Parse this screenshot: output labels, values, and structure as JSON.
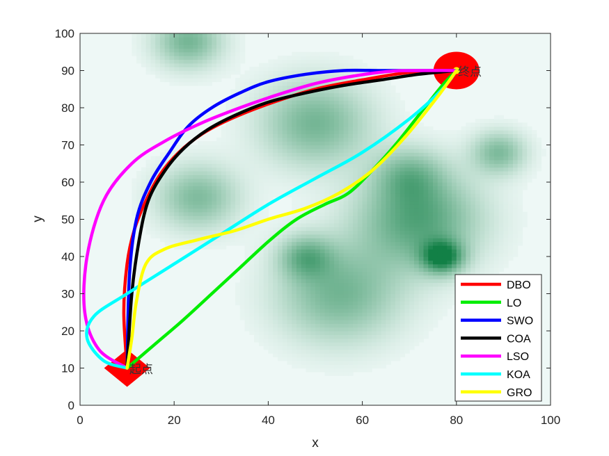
{
  "chart_data": {
    "type": "line",
    "title": "",
    "xlabel": "x",
    "ylabel": "y",
    "xlim": [
      0,
      100
    ],
    "ylim": [
      0,
      100
    ],
    "xticks": [
      "0",
      "20",
      "40",
      "60",
      "80",
      "100"
    ],
    "yticks": [
      "0",
      "10",
      "20",
      "30",
      "40",
      "50",
      "60",
      "70",
      "80",
      "90",
      "100"
    ],
    "legend_position": "bottom-right",
    "start": {
      "label": "起点",
      "x": 10,
      "y": 10,
      "color": "#ff0000"
    },
    "goal": {
      "label": "终点",
      "x": 80,
      "y": 90,
      "color": "#ff0000"
    },
    "threats": [
      {
        "x": 23,
        "y": 98,
        "strength": 0.55,
        "spread": 5
      },
      {
        "x": 50,
        "y": 76,
        "strength": 0.55,
        "spread": 8
      },
      {
        "x": 25,
        "y": 56,
        "strength": 0.5,
        "spread": 6
      },
      {
        "x": 72,
        "y": 50,
        "strength": 0.7,
        "spread": 9
      },
      {
        "x": 77,
        "y": 40,
        "strength": 0.9,
        "spread": 3
      },
      {
        "x": 55,
        "y": 30,
        "strength": 0.55,
        "spread": 9
      },
      {
        "x": 48,
        "y": 40,
        "strength": 0.5,
        "spread": 4
      },
      {
        "x": 89,
        "y": 68,
        "strength": 0.5,
        "spread": 4
      },
      {
        "x": 70,
        "y": 62,
        "strength": 0.4,
        "spread": 5
      }
    ],
    "series": [
      {
        "name": "DBO",
        "color": "#ff0000",
        "x": [
          10,
          9.3,
          10,
          11.5,
          14,
          17,
          21,
          26,
          32,
          40,
          50,
          60,
          70,
          80
        ],
        "y": [
          10,
          25,
          38,
          47,
          55,
          62,
          68,
          73,
          77,
          81,
          85,
          87.5,
          89.5,
          90
        ]
      },
      {
        "name": "LO",
        "color": "#00ee00",
        "x": [
          10,
          16,
          22,
          28,
          34,
          40,
          46,
          52,
          57,
          62,
          67,
          72,
          77,
          80
        ],
        "y": [
          10,
          16.5,
          23,
          30,
          37,
          44,
          50,
          54,
          57,
          63,
          70,
          78,
          86,
          90
        ]
      },
      {
        "name": "SWO",
        "color": "#0000ff",
        "x": [
          10,
          10.5,
          12,
          15,
          19,
          23,
          28,
          34,
          40,
          48,
          56,
          64,
          72,
          80
        ],
        "y": [
          10,
          35,
          50,
          60,
          68,
          75,
          80,
          84,
          87,
          89,
          90,
          90,
          90,
          90
        ]
      },
      {
        "name": "COA",
        "color": "#000000",
        "x": [
          10,
          11,
          12.5,
          14.5,
          18,
          22,
          27,
          33,
          40,
          48,
          56,
          64,
          72,
          80
        ],
        "y": [
          10,
          30,
          44,
          55,
          63,
          69,
          74,
          78,
          81.5,
          84,
          86,
          87.5,
          89,
          90
        ]
      },
      {
        "name": "LSO",
        "color": "#ff00ff",
        "x": [
          10,
          4,
          1,
          1.5,
          5,
          11,
          18,
          26,
          34,
          42,
          50,
          58,
          66,
          74,
          80
        ],
        "y": [
          10,
          15,
          25,
          40,
          55,
          65,
          71,
          76,
          80,
          83.5,
          86.5,
          88.5,
          89.8,
          90,
          90
        ]
      },
      {
        "name": "KOA",
        "color": "#00ffff",
        "x": [
          10,
          5,
          1.5,
          3,
          10,
          20,
          30,
          40,
          50,
          60,
          70,
          77,
          80
        ],
        "y": [
          10,
          12,
          18,
          24,
          30,
          38,
          46,
          54,
          61,
          68,
          77,
          85,
          90
        ]
      },
      {
        "name": "GRO",
        "color": "#ffff00",
        "x": [
          10,
          11,
          12,
          14,
          18,
          25,
          33,
          40,
          48,
          55,
          62,
          69,
          76,
          80
        ],
        "y": [
          10,
          18,
          28,
          38,
          42,
          44.5,
          47,
          50,
          53,
          57,
          63,
          72,
          83,
          90
        ]
      }
    ]
  }
}
